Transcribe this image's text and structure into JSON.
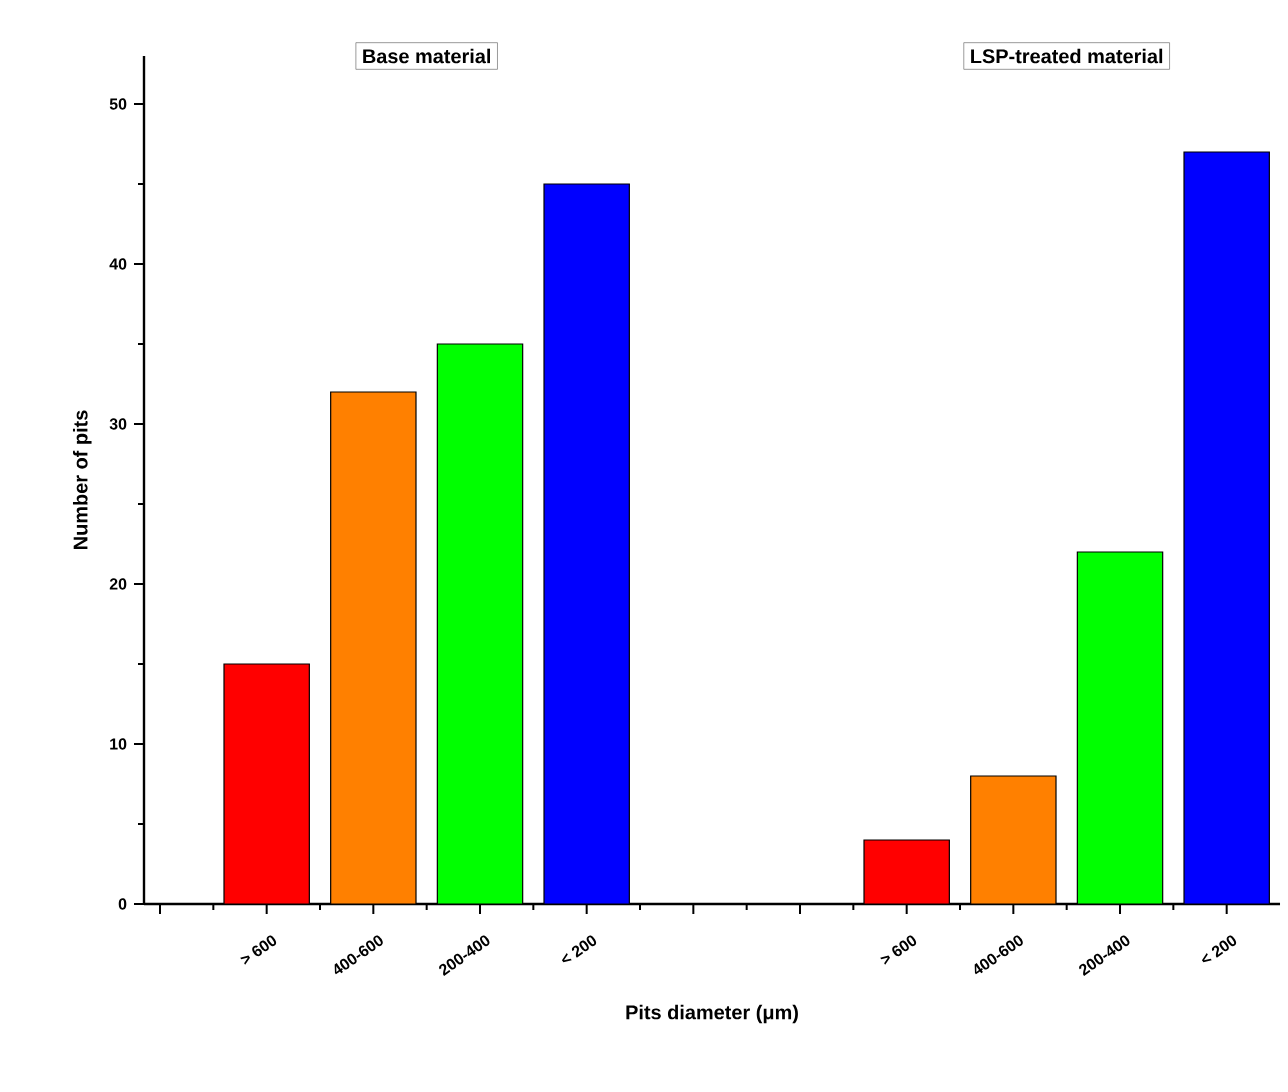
{
  "chart_data": {
    "type": "bar",
    "xlabel": "Pits diameter (μm)",
    "ylabel": "Number of pits",
    "categories": [
      null,
      "> 600",
      "400-600",
      "200-400",
      "< 200",
      null,
      null,
      "> 600",
      "400-600",
      "200-400",
      "< 200"
    ],
    "values": [
      null,
      15,
      32,
      35,
      45,
      null,
      null,
      4,
      8,
      22,
      47
    ],
    "colors": [
      null,
      "#ff0000",
      "#ff8000",
      "#00ff00",
      "#0000ff",
      null,
      null,
      "#ff0000",
      "#ff8000",
      "#00ff00",
      "#0000ff"
    ],
    "ylim": [
      0,
      53
    ],
    "yticks": [
      0,
      10,
      20,
      30,
      40,
      50
    ],
    "annotations": [
      "Base material",
      "LSP-treated material"
    ]
  }
}
